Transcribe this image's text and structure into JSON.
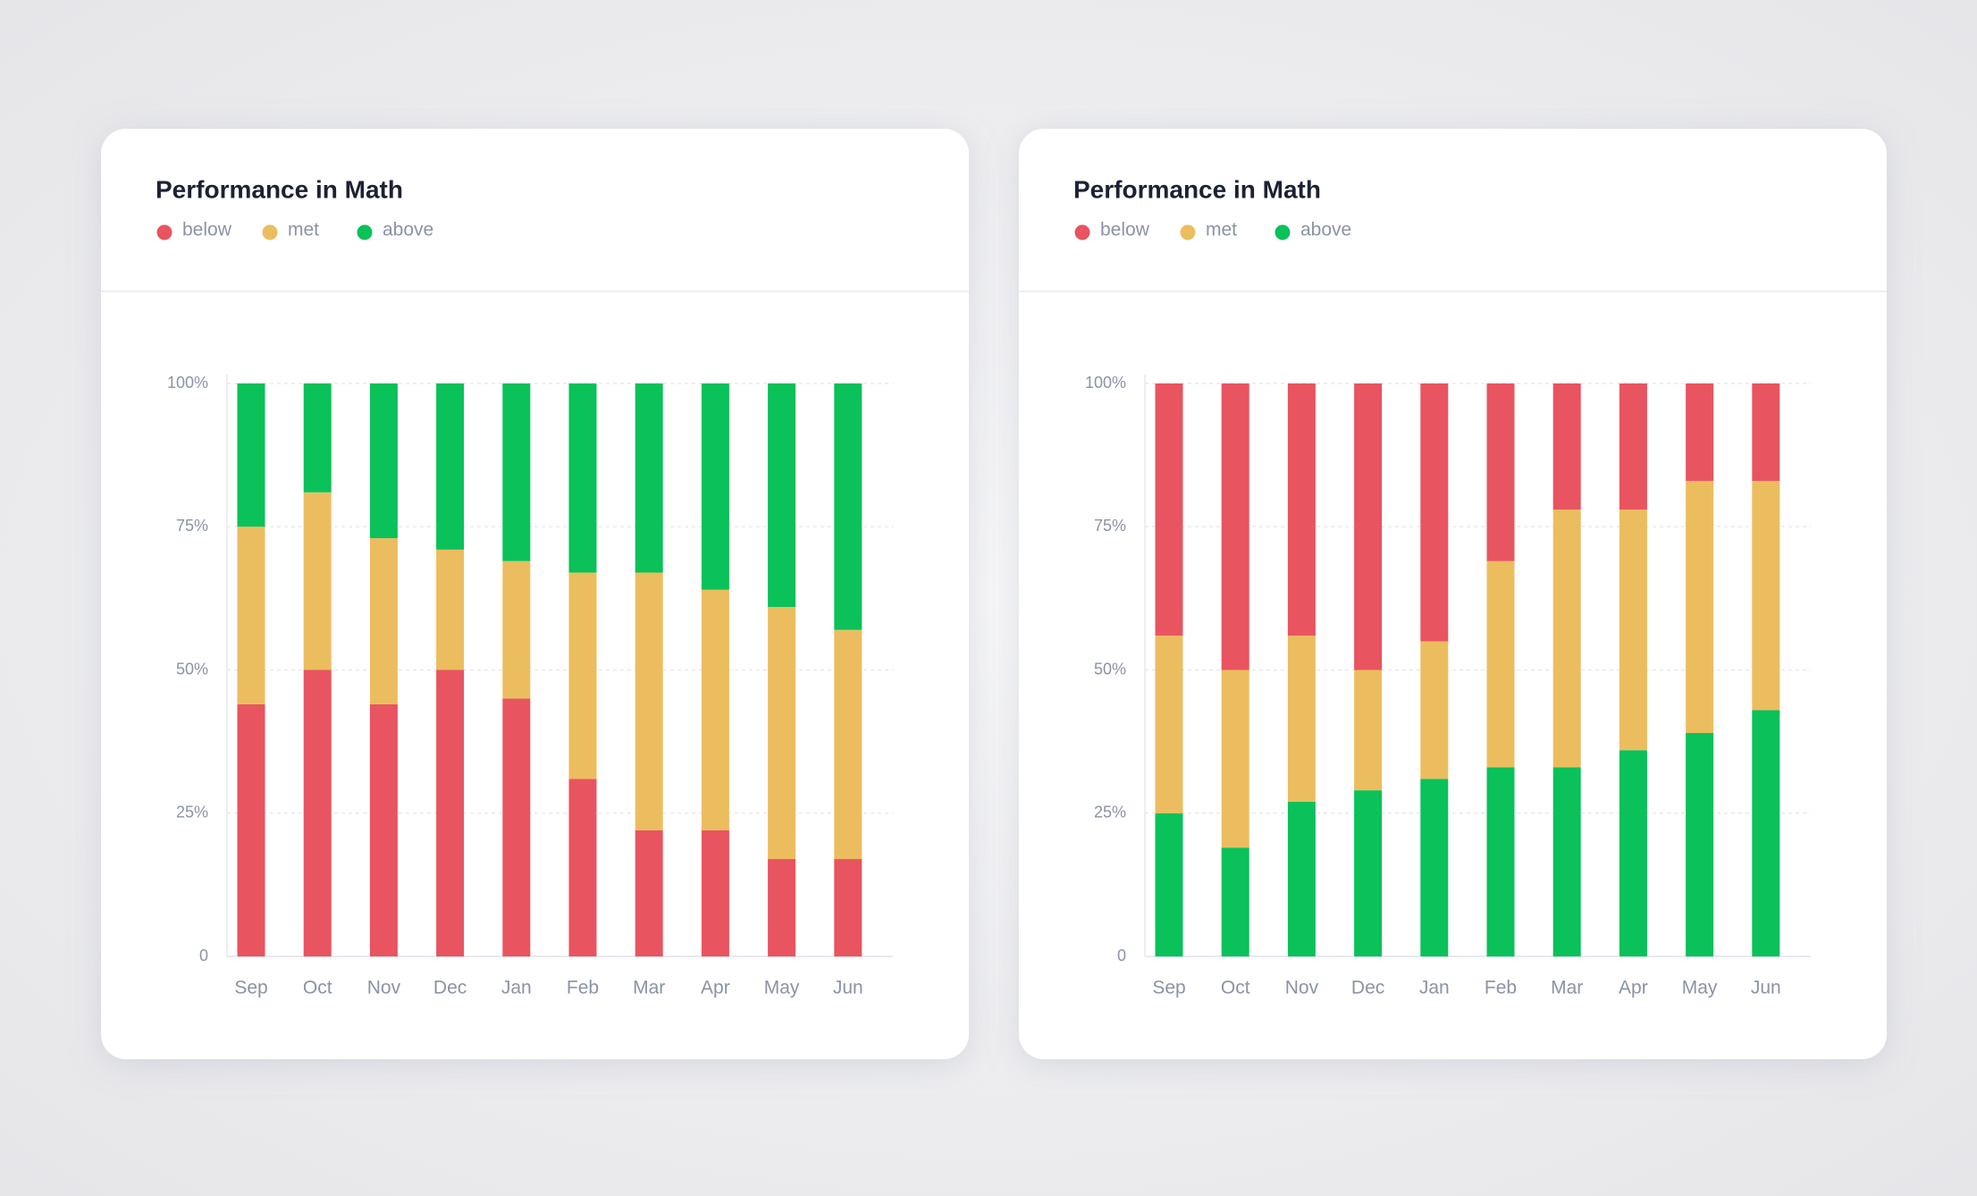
{
  "chart_data": [
    {
      "type": "stacked_bar",
      "title": "Performance in Math",
      "categories": [
        "Sep",
        "Oct",
        "Nov",
        "Dec",
        "Jan",
        "Feb",
        "Mar",
        "Apr",
        "May",
        "Jun"
      ],
      "series": [
        {
          "name": "below",
          "color": "#e8545f",
          "values": [
            44,
            50,
            44,
            50,
            45,
            31,
            22,
            22,
            17,
            17
          ]
        },
        {
          "name": "met",
          "color": "#ecbd5f",
          "values": [
            31,
            31,
            29,
            21,
            24,
            36,
            45,
            42,
            44,
            40
          ]
        },
        {
          "name": "above",
          "color": "#0ac15a",
          "values": [
            25,
            19,
            27,
            29,
            31,
            33,
            33,
            36,
            39,
            43
          ]
        }
      ],
      "stack_reversed": false,
      "ylim": [
        0,
        100
      ],
      "yticks": [
        0,
        {
          "value": 25,
          "label": "25%"
        },
        {
          "value": 50,
          "label": "50%"
        },
        {
          "value": 75,
          "label": "75%"
        },
        {
          "value": 100,
          "label": "100%"
        }
      ],
      "grid": true
    },
    {
      "type": "stacked_bar",
      "title": "Performance in Math",
      "categories": [
        "Sep",
        "Oct",
        "Nov",
        "Dec",
        "Jan",
        "Feb",
        "Mar",
        "Apr",
        "May",
        "Jun"
      ],
      "series": [
        {
          "name": "below",
          "color": "#e8545f",
          "values": [
            44,
            50,
            44,
            50,
            45,
            31,
            22,
            22,
            17,
            17
          ]
        },
        {
          "name": "met",
          "color": "#ecbd5f",
          "values": [
            31,
            31,
            29,
            21,
            24,
            36,
            45,
            42,
            44,
            40
          ]
        },
        {
          "name": "above",
          "color": "#0ac15a",
          "values": [
            25,
            19,
            27,
            29,
            31,
            33,
            33,
            36,
            39,
            43
          ]
        }
      ],
      "stack_reversed": true,
      "ylim": [
        0,
        100
      ],
      "yticks": [
        0,
        {
          "value": 25,
          "label": "25%"
        },
        {
          "value": 50,
          "label": "50%"
        },
        {
          "value": 75,
          "label": "75%"
        },
        {
          "value": 100,
          "label": "100%"
        }
      ],
      "grid": true
    }
  ]
}
